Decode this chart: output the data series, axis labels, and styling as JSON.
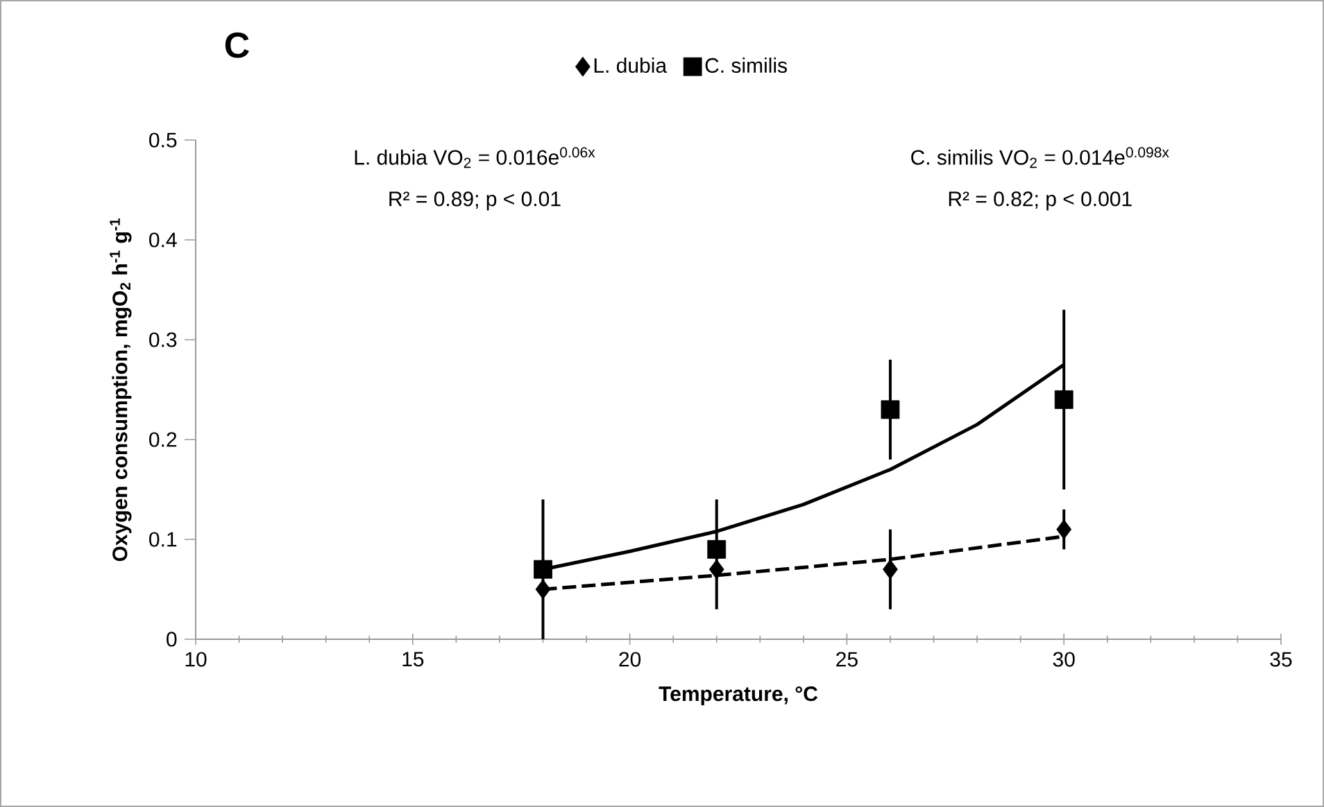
{
  "chart_data": {
    "type": "scatter",
    "title": "C",
    "xlabel": "Temperature, °C",
    "ylabel": "Oxygen consumption, mgO$_{2}$ h$^{-1}$ g$^{-1}$",
    "annotations": [
      "L. dubia VO$_{2}$ = 0.016e$^{0.06x}$",
      "R² = 0.89; p < 0.01",
      "C. similis  VO$_{2}$ = 0.014e$^{0.098x}$",
      "R² = 0.82; p < 0.001"
    ],
    "x": [
      18,
      22,
      26,
      30
    ],
    "series": [
      {
        "name": "L. dubia",
        "color": "#000000",
        "marker": "diamond",
        "values": [
          0.05,
          0.07,
          0.07,
          0.11
        ],
        "errors": [
          null,
          null,
          0.04,
          0.02
        ]
      },
      {
        "name": "C. similis",
        "color": "#000000",
        "marker": "square",
        "values": [
          0.07,
          0.09,
          0.23,
          0.24
        ],
        "errors": [
          0.07,
          [
            0.03,
            0.14
          ],
          0.05,
          0.09
        ]
      },
      {
        "type": "line",
        "color": "#000000",
        "marker": "none",
        "line_style": "dashed",
        "x": [
          18,
          22,
          26,
          30
        ],
        "values": [
          0.05,
          0.064,
          0.08,
          0.103
        ]
      },
      {
        "type": "line",
        "color": "#000000",
        "marker": "none",
        "line_style": "solid",
        "x": [
          18,
          20,
          22,
          24,
          26,
          28,
          30
        ],
        "values": [
          0.07,
          0.088,
          0.108,
          0.135,
          0.17,
          0.215,
          0.275
        ]
      }
    ],
    "xlim": [
      10,
      35
    ],
    "xticks": [
      10,
      15,
      20,
      25,
      30,
      35
    ],
    "ylim": [
      0,
      0.5
    ],
    "yticks": [
      0,
      0.1,
      0.2,
      0.3,
      0.4,
      0.5
    ],
    "grid": false,
    "legend": "top"
  }
}
